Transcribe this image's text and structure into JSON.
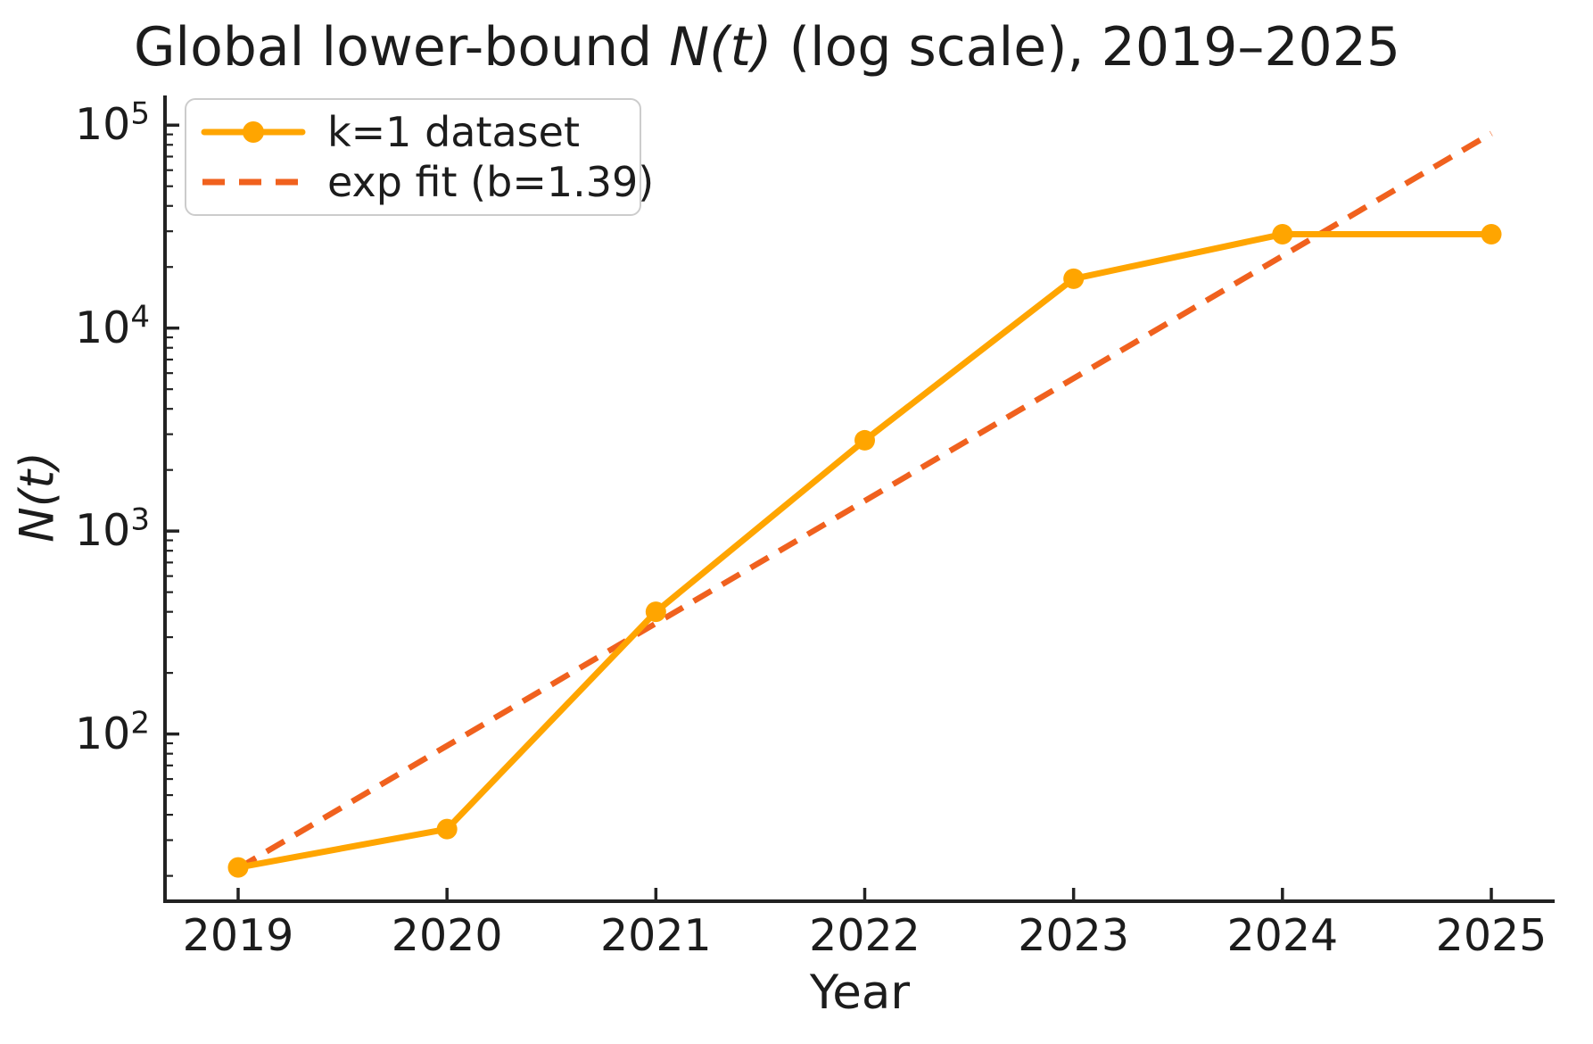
{
  "figure": {
    "title_prefix": "Global lower-bound ",
    "title_math": "N(t)",
    "title_suffix": " (log scale), 2019–2025",
    "xlabel": "Year",
    "ylabel": "N(t)"
  },
  "legend": {
    "position": "upper left",
    "entries": [
      {
        "label": "k=1 dataset",
        "style": "solid-line-circle-marker",
        "color": "#FFA500"
      },
      {
        "label": "exp fit (b=1.39)",
        "style": "dashed-line",
        "color": "#F0611E"
      }
    ]
  },
  "chart_data": {
    "type": "line",
    "title": "Global lower-bound N(t) (log scale), 2019–2025",
    "xlabel": "Year",
    "ylabel": "N(t)",
    "yscale": "log",
    "ylim": [
      15,
      140000
    ],
    "xlim": [
      2018.65,
      2025.3
    ],
    "grid": false,
    "legend_position": "upper left",
    "x": [
      2019,
      2020,
      2021,
      2022,
      2023,
      2024,
      2025
    ],
    "ytick_exponents": [
      2,
      3,
      4,
      5
    ],
    "series": [
      {
        "name": "k=1 dataset",
        "values": [
          22,
          34,
          400,
          2800,
          17500,
          29000,
          29000
        ],
        "color": "#FFA500",
        "style": "solid",
        "marker": "circle"
      },
      {
        "name": "exp fit (b=1.39)",
        "fit_b": 1.39,
        "x": [
          2019,
          2025
        ],
        "values": [
          21.8,
          91000
        ],
        "color": "#F0611E",
        "style": "dashed"
      }
    ],
    "axis_color": "#222222"
  }
}
